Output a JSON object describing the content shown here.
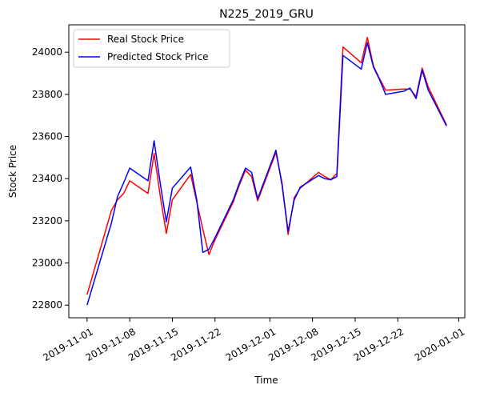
{
  "chart_data": {
    "type": "line",
    "title": "N225_2019_GRU",
    "xlabel": "Time",
    "ylabel": "Stock Price",
    "x_axis_type": "date",
    "xlim": [
      "2019-10-29",
      "2020-01-02"
    ],
    "ylim": [
      22740,
      24130
    ],
    "x_ticks": [
      "2019-11-01",
      "2019-11-08",
      "2019-11-15",
      "2019-11-22",
      "2019-12-01",
      "2019-12-08",
      "2019-12-15",
      "2019-12-22",
      "2020-01-01"
    ],
    "y_ticks": [
      22800,
      23000,
      23200,
      23400,
      23600,
      23800,
      24000
    ],
    "grid": false,
    "legend_position": "top-left",
    "x": [
      "2019-11-01",
      "2019-11-05",
      "2019-11-06",
      "2019-11-07",
      "2019-11-08",
      "2019-11-11",
      "2019-11-12",
      "2019-11-13",
      "2019-11-14",
      "2019-11-15",
      "2019-11-18",
      "2019-11-19",
      "2019-11-20",
      "2019-11-21",
      "2019-11-22",
      "2019-11-25",
      "2019-11-26",
      "2019-11-27",
      "2019-11-28",
      "2019-11-29",
      "2019-12-02",
      "2019-12-03",
      "2019-12-04",
      "2019-12-05",
      "2019-12-06",
      "2019-12-09",
      "2019-12-10",
      "2019-12-11",
      "2019-12-12",
      "2019-12-13",
      "2019-12-16",
      "2019-12-17",
      "2019-12-18",
      "2019-12-19",
      "2019-12-20",
      "2019-12-23",
      "2019-12-24",
      "2019-12-25",
      "2019-12-26",
      "2019-12-27",
      "2019-12-30"
    ],
    "series": [
      {
        "name": "Real Stock Price",
        "color": "#ff0000",
        "values": [
          22850,
          23250,
          23300,
          23330,
          23390,
          23330,
          23520,
          23320,
          23140,
          23300,
          23420,
          23290,
          23160,
          23040,
          23110,
          23290,
          23370,
          23440,
          23410,
          23295,
          23525,
          23380,
          23135,
          23310,
          23355,
          23430,
          23410,
          23395,
          23425,
          24025,
          23950,
          24070,
          23935,
          23875,
          23820,
          23825,
          23825,
          23790,
          23925,
          23835,
          23655
        ]
      },
      {
        "name": "Predicted Stock Price",
        "color": "#0000ff",
        "values": [
          22800,
          23190,
          23315,
          23380,
          23450,
          23390,
          23580,
          23380,
          23195,
          23355,
          23455,
          23300,
          23050,
          23065,
          23120,
          23300,
          23380,
          23450,
          23430,
          23305,
          23535,
          23370,
          23150,
          23300,
          23360,
          23415,
          23400,
          23395,
          23410,
          23985,
          23920,
          24045,
          23930,
          23870,
          23800,
          23815,
          23830,
          23780,
          23915,
          23820,
          23650
        ]
      }
    ]
  }
}
